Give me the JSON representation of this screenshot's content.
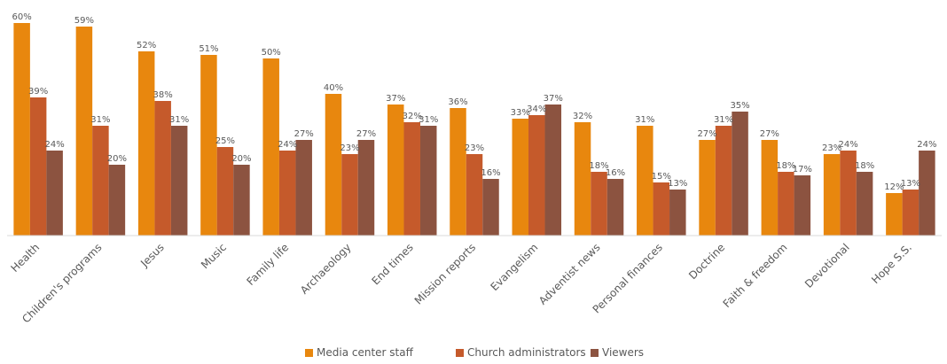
{
  "chart_data": {
    "type": "bar",
    "title": "",
    "xlabel": "",
    "ylabel": "",
    "ylim": [
      0,
      62
    ],
    "grid": false,
    "legend_position": "bottom",
    "categories": [
      "Health",
      "Children's programs",
      "Jesus",
      "Music",
      "Family life",
      "Archaeology",
      "End times",
      "Mission reports",
      "Evangelism",
      "Adventist news",
      "Personal finances",
      "Doctrine",
      "Faith & freedom",
      "Devotional",
      "Hope S.S."
    ],
    "series": [
      {
        "name": "Media center staff",
        "color": "#E8870E",
        "values": [
          60,
          59,
          52,
          51,
          50,
          40,
          37,
          36,
          33,
          32,
          31,
          27,
          27,
          23,
          12
        ]
      },
      {
        "name": "Church administrators",
        "color": "#C55A2B",
        "values": [
          39,
          31,
          38,
          25,
          24,
          23,
          32,
          23,
          34,
          18,
          15,
          31,
          18,
          24,
          13
        ]
      },
      {
        "name": "Viewers",
        "color": "#8C5340",
        "values": [
          24,
          20,
          31,
          20,
          27,
          27,
          31,
          16,
          37,
          16,
          13,
          35,
          17,
          18,
          24
        ]
      }
    ],
    "value_suffix": "%"
  }
}
